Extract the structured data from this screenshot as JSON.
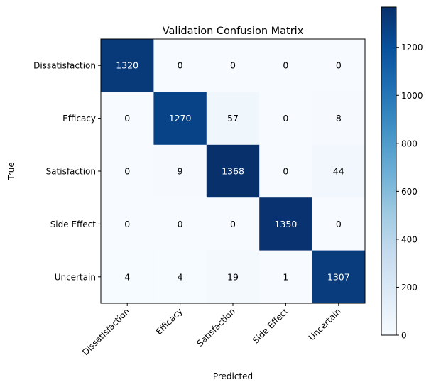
{
  "chart_data": {
    "type": "heatmap",
    "title": "Validation Confusion Matrix",
    "xlabel": "Predicted",
    "ylabel": "True",
    "x_categories": [
      "Dissatisfaction",
      "Efficacy",
      "Satisfaction",
      "Side Effect",
      "Uncertain"
    ],
    "y_categories": [
      "Dissatisfaction",
      "Efficacy",
      "Satisfaction",
      "Side Effect",
      "Uncertain"
    ],
    "values": [
      [
        1320,
        0,
        0,
        0,
        0
      ],
      [
        0,
        1270,
        57,
        0,
        8
      ],
      [
        0,
        9,
        1368,
        0,
        44
      ],
      [
        0,
        0,
        0,
        1350,
        0
      ],
      [
        4,
        4,
        19,
        1,
        1307
      ]
    ],
    "colormap": "Blues",
    "colorbar": {
      "range": [
        0,
        1368
      ],
      "ticks": [
        0,
        200,
        400,
        600,
        800,
        1000,
        1200
      ]
    },
    "grid": false,
    "legend": "colorbar-right"
  }
}
